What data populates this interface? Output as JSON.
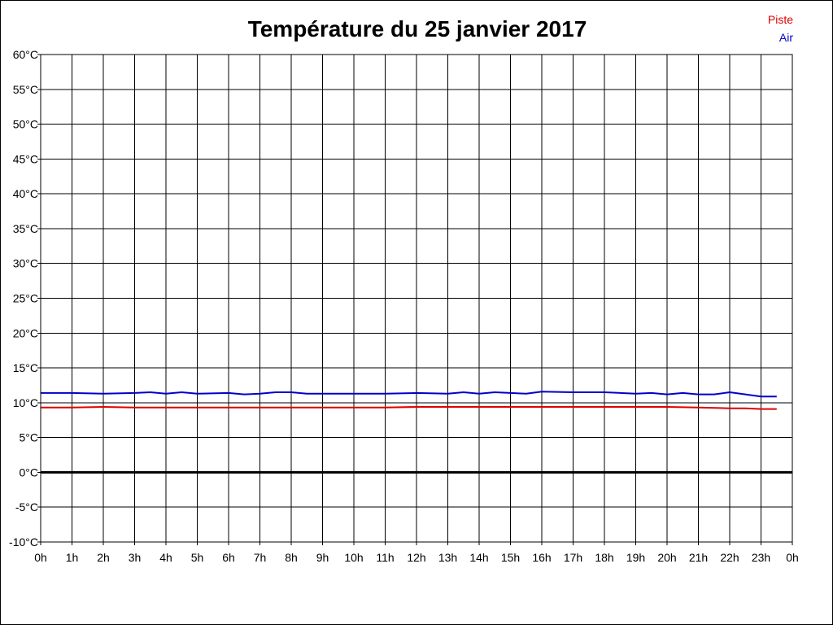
{
  "chart_data": {
    "type": "line",
    "title": "Température du 25 janvier 2017",
    "xlabel": "",
    "ylabel": "",
    "x_tick_labels": [
      "0h",
      "1h",
      "2h",
      "3h",
      "4h",
      "5h",
      "6h",
      "7h",
      "8h",
      "9h",
      "10h",
      "11h",
      "12h",
      "13h",
      "14h",
      "15h",
      "16h",
      "17h",
      "18h",
      "19h",
      "20h",
      "21h",
      "22h",
      "23h",
      "0h"
    ],
    "y_tick_values": [
      60,
      55,
      50,
      45,
      40,
      35,
      30,
      25,
      20,
      15,
      10,
      5,
      0,
      -5,
      -10
    ],
    "y_tick_labels": [
      "60°C",
      "55°C",
      "50°C",
      "45°C",
      "40°C",
      "35°C",
      "30°C",
      "25°C",
      "20°C",
      "15°C",
      "10°C",
      "5°C",
      "0°C",
      "-5°C",
      "-10°C"
    ],
    "xlim": [
      0,
      24
    ],
    "ylim": [
      -10,
      60
    ],
    "grid": true,
    "legend_position": "top-right",
    "series": [
      {
        "name": "Piste",
        "color": "#e00000",
        "x": [
          0,
          1,
          2,
          3,
          4,
          5,
          6,
          7,
          8,
          9,
          10,
          11,
          12,
          13,
          14,
          15,
          16,
          17,
          18,
          19,
          20,
          21,
          22,
          22.5,
          23,
          23.5
        ],
        "values": [
          9.3,
          9.3,
          9.4,
          9.3,
          9.3,
          9.3,
          9.3,
          9.3,
          9.3,
          9.3,
          9.3,
          9.3,
          9.4,
          9.4,
          9.4,
          9.4,
          9.4,
          9.4,
          9.4,
          9.4,
          9.4,
          9.3,
          9.2,
          9.2,
          9.1,
          9.1
        ]
      },
      {
        "name": "Air",
        "color": "#0000cc",
        "x": [
          0,
          1,
          2,
          3,
          3.5,
          4,
          4.5,
          5,
          6,
          6.5,
          7,
          7.5,
          8,
          8.5,
          9,
          10,
          11,
          12,
          13,
          13.5,
          14,
          14.5,
          15,
          15.5,
          16,
          17,
          18,
          19,
          19.5,
          20,
          20.5,
          21,
          21.5,
          22,
          22.5,
          23,
          23.5
        ],
        "values": [
          11.4,
          11.4,
          11.3,
          11.4,
          11.5,
          11.3,
          11.5,
          11.3,
          11.4,
          11.2,
          11.3,
          11.5,
          11.5,
          11.3,
          11.3,
          11.3,
          11.3,
          11.4,
          11.3,
          11.5,
          11.3,
          11.5,
          11.4,
          11.3,
          11.6,
          11.5,
          11.5,
          11.3,
          11.4,
          11.2,
          11.4,
          11.2,
          11.2,
          11.5,
          11.2,
          10.9,
          10.9
        ]
      }
    ]
  }
}
